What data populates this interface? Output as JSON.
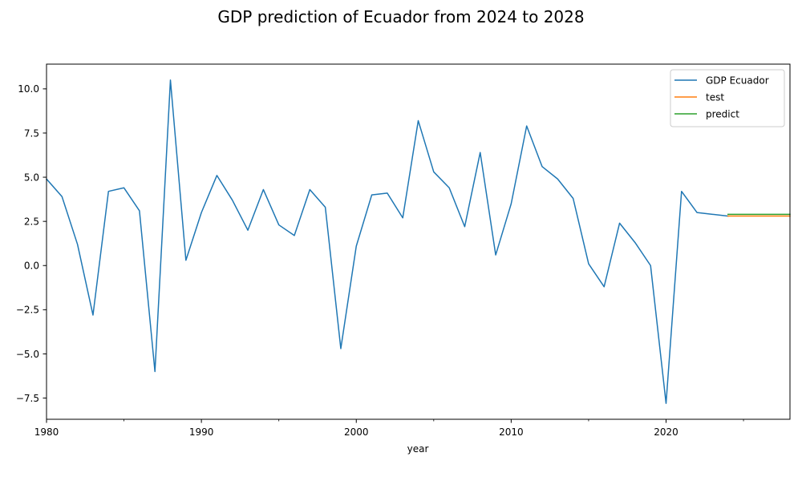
{
  "chart_data": {
    "type": "line",
    "title": "GDP prediction of Ecuador from 2024 to 2028",
    "xlabel": "year",
    "ylabel": "",
    "xlim": [
      1980,
      2028
    ],
    "ylim": [
      -8.7,
      11.4
    ],
    "x_ticks": [
      1980,
      1990,
      2000,
      2010,
      2020
    ],
    "x_tick_labels": [
      "1980",
      "1990",
      "2000",
      "2010",
      "2020"
    ],
    "y_ticks": [
      -7.5,
      -5.0,
      -2.5,
      0.0,
      2.5,
      5.0,
      7.5,
      10.0
    ],
    "y_tick_labels": [
      "−7.5",
      "−5.0",
      "−2.5",
      "0.0",
      "2.5",
      "5.0",
      "7.5",
      "10.0"
    ],
    "grid": false,
    "legend_position": "top-right",
    "series": [
      {
        "name": "GDP Ecuador",
        "color": "#1f77b4",
        "x": [
          1980,
          1981,
          1982,
          1983,
          1984,
          1985,
          1986,
          1987,
          1988,
          1989,
          1990,
          1991,
          1992,
          1993,
          1994,
          1995,
          1996,
          1997,
          1998,
          1999,
          2000,
          2001,
          2002,
          2003,
          2004,
          2005,
          2006,
          2007,
          2008,
          2009,
          2010,
          2011,
          2012,
          2013,
          2014,
          2015,
          2016,
          2017,
          2018,
          2019,
          2020,
          2021,
          2022,
          2023,
          2024
        ],
        "y": [
          4.9,
          3.9,
          1.2,
          -2.8,
          4.2,
          4.4,
          3.1,
          -6.0,
          10.5,
          0.3,
          3.0,
          5.1,
          3.7,
          2.0,
          4.3,
          2.3,
          1.7,
          4.3,
          3.3,
          -4.7,
          1.1,
          4.0,
          4.1,
          2.7,
          8.2,
          5.3,
          4.4,
          2.2,
          6.4,
          0.6,
          3.5,
          7.9,
          5.6,
          4.9,
          3.8,
          0.1,
          -1.2,
          2.4,
          1.3,
          0.0,
          -7.8,
          4.2,
          3.0,
          2.9,
          2.8
        ]
      },
      {
        "name": "test",
        "color": "#ff7f0e",
        "x": [
          2024,
          2025,
          2026,
          2027,
          2028
        ],
        "y": [
          2.8,
          2.8,
          2.8,
          2.8,
          2.8
        ]
      },
      {
        "name": "predict",
        "color": "#2ca02c",
        "x": [
          2024,
          2025,
          2026,
          2027,
          2028
        ],
        "y": [
          2.9,
          2.9,
          2.9,
          2.9,
          2.9
        ]
      }
    ]
  }
}
